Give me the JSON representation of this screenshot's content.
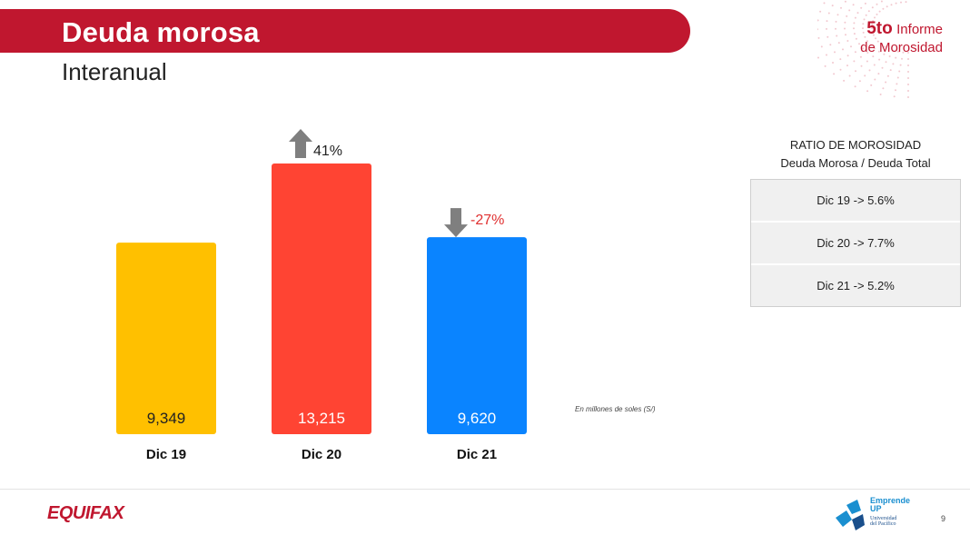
{
  "header": {
    "title": "Deuda morosa",
    "subtitle": "Interanual",
    "report_logo": {
      "line1_bold": "5to",
      "line1_rest": "Informe",
      "line2": "de Morosidad"
    }
  },
  "chart_data": {
    "type": "bar",
    "title": "",
    "xlabel": "",
    "ylabel": "",
    "categories": [
      "Dic 19",
      "Dic 20",
      "Dic 21"
    ],
    "values": [
      9349,
      13215,
      9620
    ],
    "value_labels": [
      "9,349",
      "13,215",
      "9,620"
    ],
    "colors": [
      "#ffc000",
      "#ff4433",
      "#0a84ff"
    ],
    "value_label_colors": [
      "#222222",
      "#ffffff",
      "#ffffff"
    ],
    "ylim": [
      0,
      13215
    ],
    "grid": false,
    "annotations": [
      {
        "category": "Dic 20",
        "text": "41%",
        "direction": "up",
        "color": "#222222"
      },
      {
        "category": "Dic 21",
        "text": "-27%",
        "direction": "down",
        "color": "#e03030"
      }
    ],
    "unit_note": "En millones de soles (S/)"
  },
  "ratio": {
    "title_line1": "RATIO DE MOROSIDAD",
    "title_line2": "Deuda Morosa /  Deuda Total",
    "rows": [
      "Dic 19 -> 5.6%",
      "Dic 20 -> 7.7%",
      "Dic 21 -> 5.2%"
    ]
  },
  "footer": {
    "equifax": "EQUIFAX",
    "emprende_title1": "Emprende",
    "emprende_title2": "UP",
    "emprende_sub1": "Universidad",
    "emprende_sub2": "del Pacífico",
    "page_number": "9"
  },
  "colors": {
    "brand_red": "#c0172f",
    "arrow_gray": "#7f7f7f"
  }
}
